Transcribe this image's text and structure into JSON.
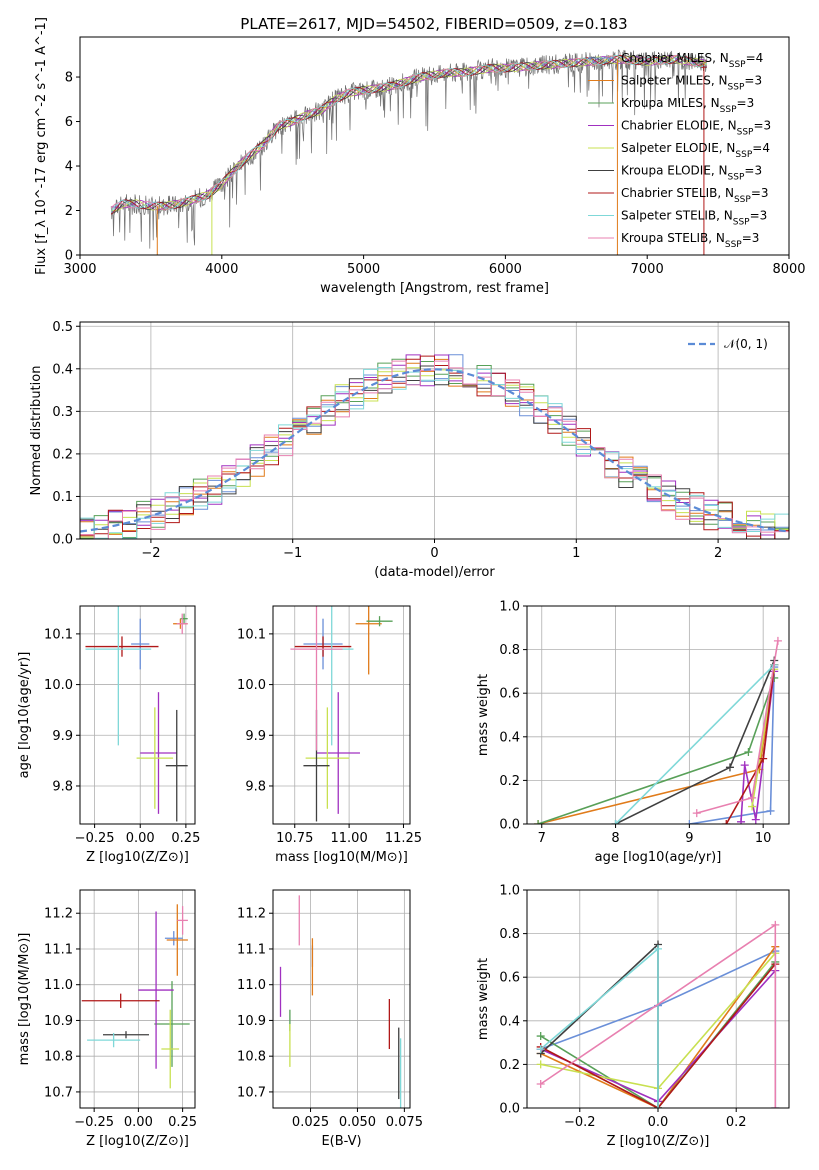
{
  "colors": [
    "#6a8fd8",
    "#e07b1a",
    "#58a058",
    "#a030c0",
    "#c8e050",
    "#404040",
    "#b01818",
    "#7fd8d8",
    "#e880b0"
  ],
  "chart_data": [
    {
      "id": "spectrum",
      "type": "line",
      "title": "PLATE=2617, MJD=54502, FIBERID=0509, z=0.183",
      "xlabel": "wavelength [Angstrom, rest frame]",
      "ylabel": "Flux [f_λ 10^-17 erg cm^-2 s^-1 A^-1]",
      "xlim": [
        3000,
        8000
      ],
      "ylim": [
        0,
        9.8
      ],
      "xticks": [
        "3000",
        "4000",
        "5000",
        "6000",
        "7000",
        "8000"
      ],
      "yticks": [
        "0",
        "2",
        "4",
        "6",
        "8"
      ],
      "legend_position": "upper right",
      "continuum_x": [
        3220,
        3300,
        3400,
        3500,
        3600,
        3700,
        3800,
        3900,
        4000,
        4100,
        4200,
        4300,
        4400,
        4500,
        4600,
        4700,
        4800,
        4900,
        5000,
        5100,
        5200,
        5300,
        5400,
        5500,
        5600,
        5700,
        5800,
        5900,
        6000,
        6200,
        6400,
        6600,
        6800,
        7000,
        7200,
        7400
      ],
      "continuum_y": [
        2.0,
        2.3,
        2.3,
        2.2,
        2.2,
        2.3,
        2.5,
        2.7,
        3.2,
        3.9,
        4.5,
        5.0,
        5.8,
        6.0,
        6.3,
        6.5,
        7.0,
        7.3,
        7.4,
        7.5,
        7.6,
        7.8,
        8.0,
        8.1,
        8.2,
        8.2,
        8.3,
        8.4,
        8.4,
        8.5,
        8.6,
        8.7,
        8.8,
        8.7,
        8.8,
        8.6
      ],
      "series": [
        {
          "name": "Chabrier MILES",
          "nssp": "4"
        },
        {
          "name": "Salpeter MILES",
          "nssp": "3"
        },
        {
          "name": "Kroupa MILES",
          "nssp": "3"
        },
        {
          "name": "Chabrier ELODIE",
          "nssp": "3"
        },
        {
          "name": "Salpeter ELODIE",
          "nssp": "4"
        },
        {
          "name": "Kroupa ELODIE",
          "nssp": "3"
        },
        {
          "name": "Chabrier STELIB",
          "nssp": "3"
        },
        {
          "name": "Salpeter STELIB",
          "nssp": "3"
        },
        {
          "name": "Kroupa STELIB",
          "nssp": "3"
        }
      ]
    },
    {
      "id": "residuals",
      "type": "line",
      "xlabel": "(data-model)/error",
      "ylabel": "Normed distribution",
      "xlim": [
        -2.5,
        2.5
      ],
      "ylim": [
        0,
        0.51
      ],
      "xticks": [
        "−2",
        "−1",
        "0",
        "1",
        "2"
      ],
      "yticks": [
        "0.0",
        "0.1",
        "0.2",
        "0.3",
        "0.4",
        "0.5"
      ],
      "legend": "𝒩(0, 1)",
      "hist_bin_width": 0.1,
      "hist_envelope": [
        0.02,
        0.022,
        0.03,
        0.04,
        0.05,
        0.065,
        0.08,
        0.1,
        0.12,
        0.145,
        0.17,
        0.2,
        0.24,
        0.27,
        0.3,
        0.32,
        0.34,
        0.36,
        0.38,
        0.39,
        0.395,
        0.4,
        0.395,
        0.39,
        0.38,
        0.36,
        0.34,
        0.32,
        0.3,
        0.27,
        0.24,
        0.2,
        0.17,
        0.145,
        0.12,
        0.1,
        0.08,
        0.065,
        0.05,
        0.04,
        0.03,
        0.022,
        0.02,
        0.02,
        0.02,
        0.02,
        0.02,
        0.02,
        0.02,
        0.02
      ]
    },
    {
      "id": "age-vs-Z",
      "type": "scatter",
      "xlabel": "Z [log10(Z/Z⊙)]",
      "ylabel": "age  [log10(age/yr)]",
      "xlim": [
        -0.33,
        0.3
      ],
      "ylim": [
        9.725,
        10.155
      ],
      "xticks": [
        "−0.25",
        "0.00",
        "0.25"
      ],
      "yticks": [
        "9.8",
        "9.9",
        "10.0",
        "10.1"
      ],
      "points": [
        {
          "x": 0.0,
          "y": 10.08,
          "xerr": 0.05,
          "yerr": 0.05
        },
        {
          "x": 0.22,
          "y": 10.12,
          "xerr": 0.04,
          "yerr": 0.01
        },
        {
          "x": 0.24,
          "y": 10.13,
          "xerr": 0.02,
          "yerr": 0.01
        },
        {
          "x": 0.1,
          "y": 9.865,
          "xerr": 0.1,
          "yerr": 0.12
        },
        {
          "x": 0.08,
          "y": 9.855,
          "xerr": 0.1,
          "yerr": 0.1
        },
        {
          "x": 0.2,
          "y": 9.84,
          "xerr": 0.06,
          "yerr": 0.11
        },
        {
          "x": -0.1,
          "y": 10.075,
          "xerr": 0.2,
          "yerr": 0.02
        },
        {
          "x": -0.12,
          "y": 10.07,
          "xerr": 0.18,
          "yerr": 0.19
        },
        {
          "x": 0.23,
          "y": 10.12,
          "xerr": 0.03,
          "yerr": 0.02
        }
      ]
    },
    {
      "id": "age-vs-mass",
      "type": "scatter",
      "xlabel": "mass [log10(M/M⊙)]",
      "ylabel": "",
      "xlim": [
        10.65,
        11.28
      ],
      "ylim": [
        9.725,
        10.155
      ],
      "xticks": [
        "10.75",
        "11.00",
        "11.25"
      ],
      "yticks": [
        "9.8",
        "9.9",
        "10.0",
        "10.1"
      ],
      "points": [
        {
          "x": 10.88,
          "y": 10.08,
          "xerr": 0.09,
          "yerr": 0.05
        },
        {
          "x": 11.09,
          "y": 10.12,
          "xerr": 0.06,
          "yerr": 0.1
        },
        {
          "x": 11.14,
          "y": 10.125,
          "xerr": 0.06,
          "yerr": 0.01
        },
        {
          "x": 10.95,
          "y": 9.865,
          "xerr": 0.1,
          "yerr": 0.12
        },
        {
          "x": 10.9,
          "y": 9.855,
          "xerr": 0.1,
          "yerr": 0.1
        },
        {
          "x": 10.85,
          "y": 9.84,
          "xerr": 0.06,
          "yerr": 0.11
        },
        {
          "x": 10.88,
          "y": 10.075,
          "xerr": 0.13,
          "yerr": 0.02
        },
        {
          "x": 10.92,
          "y": 10.07,
          "xerr": 0.1,
          "yerr": 0.19
        },
        {
          "x": 10.85,
          "y": 10.07,
          "xerr": 0.12,
          "yerr": 0.2
        }
      ]
    },
    {
      "id": "weight-vs-age",
      "type": "line",
      "xlabel": "age  [log10(age/yr)]",
      "ylabel": "mass weight",
      "xlim": [
        6.8,
        10.35
      ],
      "ylim": [
        0,
        1.0
      ],
      "xticks": [
        "7",
        "8",
        "9",
        "10"
      ],
      "yticks": [
        "0.0",
        "0.2",
        "0.4",
        "0.6",
        "0.8",
        "1.0"
      ],
      "series": [
        {
          "x": [
            9.0,
            10.1,
            10.15
          ],
          "y": [
            0.0,
            0.06,
            0.72
          ]
        },
        {
          "x": [
            6.95,
            9.95,
            10.15
          ],
          "y": [
            0.0,
            0.25,
            0.73
          ]
        },
        {
          "x": [
            6.95,
            9.8,
            10.15
          ],
          "y": [
            0.0,
            0.33,
            0.67
          ]
        },
        {
          "x": [
            9.7,
            9.75,
            9.9,
            10.15
          ],
          "y": [
            0.01,
            0.27,
            0.02,
            0.7
          ]
        },
        {
          "x": [
            9.85,
            10.15
          ],
          "y": [
            0.08,
            0.71
          ]
        },
        {
          "x": [
            8.0,
            9.55,
            10.15
          ],
          "y": [
            0.0,
            0.26,
            0.75
          ]
        },
        {
          "x": [
            9.5,
            10.0,
            10.15
          ],
          "y": [
            0.0,
            0.3,
            0.73
          ]
        },
        {
          "x": [
            8.0,
            10.15
          ],
          "y": [
            0.0,
            0.73
          ]
        },
        {
          "x": [
            9.1,
            9.85,
            10.2
          ],
          "y": [
            0.05,
            0.12,
            0.84
          ]
        }
      ]
    },
    {
      "id": "mass-vs-Z",
      "type": "scatter",
      "xlabel": "Z [log10(Z/Z⊙)]",
      "ylabel": "mass [log10(M/M⊙)]",
      "xlim": [
        -0.33,
        0.32
      ],
      "ylim": [
        10.655,
        11.265
      ],
      "xticks": [
        "−0.25",
        "0.00",
        "0.25"
      ],
      "yticks": [
        "10.7",
        "10.8",
        "10.9",
        "11.0",
        "11.1",
        "11.2"
      ],
      "points": [
        {
          "x": 0.2,
          "y": 11.13,
          "xerr": 0.05,
          "yerr": 0.02
        },
        {
          "x": 0.22,
          "y": 11.125,
          "xerr": 0.06,
          "yerr": 0.1
        },
        {
          "x": 0.19,
          "y": 10.89,
          "xerr": 0.1,
          "yerr": 0.12
        },
        {
          "x": 0.1,
          "y": 10.985,
          "xerr": 0.1,
          "yerr": 0.22
        },
        {
          "x": 0.18,
          "y": 10.82,
          "xerr": 0.05,
          "yerr": 0.11
        },
        {
          "x": -0.07,
          "y": 10.86,
          "xerr": 0.13,
          "yerr": 0.01
        },
        {
          "x": -0.1,
          "y": 10.955,
          "xerr": 0.22,
          "yerr": 0.02
        },
        {
          "x": -0.14,
          "y": 10.845,
          "xerr": 0.15,
          "yerr": 0.02
        },
        {
          "x": 0.25,
          "y": 11.18,
          "xerr": 0.03,
          "yerr": 0.04
        }
      ]
    },
    {
      "id": "mass-vs-ebv",
      "type": "scatter",
      "xlabel": "E(B-V)",
      "ylabel": "",
      "xlim": [
        0.005,
        0.078
      ],
      "ylim": [
        10.655,
        11.265
      ],
      "xticks": [
        "0.025",
        "0.050",
        "0.075"
      ],
      "yticks": [
        "10.7",
        "10.8",
        "10.9",
        "11.0",
        "11.1",
        "11.2"
      ],
      "points": [
        {
          "x": 0.026,
          "y": 11.08,
          "yerr": 0.03
        },
        {
          "x": 0.026,
          "y": 11.05,
          "yerr": 0.08
        },
        {
          "x": 0.014,
          "y": 10.9,
          "yerr": 0.03
        },
        {
          "x": 0.009,
          "y": 10.98,
          "yerr": 0.07
        },
        {
          "x": 0.014,
          "y": 10.83,
          "yerr": 0.06
        },
        {
          "x": 0.072,
          "y": 10.78,
          "yerr": 0.1
        },
        {
          "x": 0.067,
          "y": 10.89,
          "yerr": 0.07
        },
        {
          "x": 0.073,
          "y": 10.75,
          "yerr": 0.1
        },
        {
          "x": 0.019,
          "y": 11.18,
          "yerr": 0.07
        }
      ]
    },
    {
      "id": "weight-vs-Z",
      "type": "line",
      "xlabel": "Z [log10(Z/Z⊙)]",
      "ylabel": "mass weight",
      "xlim": [
        -0.335,
        0.335
      ],
      "ylim": [
        0,
        1.0
      ],
      "xticks": [
        "−0.2",
        "0.0",
        "0.2"
      ],
      "yticks": [
        "0.0",
        "0.2",
        "0.4",
        "0.6",
        "0.8",
        "1.0"
      ],
      "series": [
        {
          "x": [
            -0.3,
            0.0,
            0.3,
            0.3
          ],
          "y": [
            0.27,
            0.47,
            0.72,
            0.0
          ]
        },
        {
          "x": [
            -0.3,
            0.0,
            0.3
          ],
          "y": [
            0.25,
            0.0,
            0.74
          ]
        },
        {
          "x": [
            -0.3,
            0.0,
            0.3
          ],
          "y": [
            0.33,
            0.0,
            0.67
          ]
        },
        {
          "x": [
            -0.3,
            0.0,
            0.3
          ],
          "y": [
            0.27,
            0.03,
            0.63
          ]
        },
        {
          "x": [
            -0.3,
            0.0,
            0.3
          ],
          "y": [
            0.2,
            0.09,
            0.71
          ]
        },
        {
          "x": [
            -0.3,
            0.0,
            0.0
          ],
          "y": [
            0.25,
            0.75,
            0.0
          ]
        },
        {
          "x": [
            -0.3,
            0.0,
            0.3
          ],
          "y": [
            0.28,
            0.0,
            0.66
          ]
        },
        {
          "x": [
            -0.3,
            0.0,
            0.0
          ],
          "y": [
            0.27,
            0.73,
            0.0
          ]
        },
        {
          "x": [
            -0.3,
            0.3,
            0.3
          ],
          "y": [
            0.11,
            0.84,
            0.0
          ]
        }
      ]
    }
  ]
}
